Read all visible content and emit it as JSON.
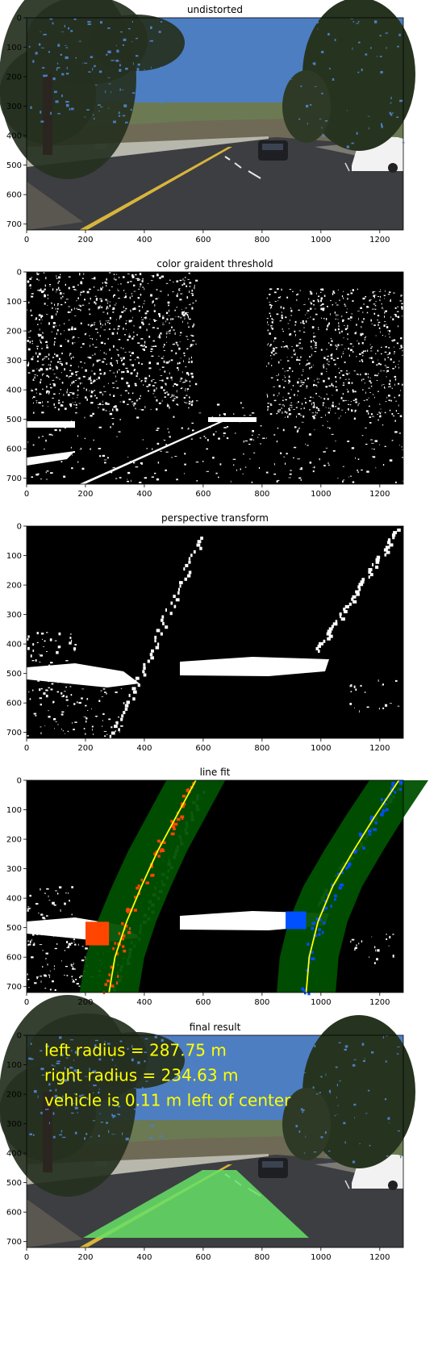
{
  "figure": {
    "panels": [
      {
        "id": "undistorted",
        "title": "undistorted",
        "kind": "photo"
      },
      {
        "id": "threshold",
        "title": "color graident threshold",
        "kind": "binary"
      },
      {
        "id": "warped",
        "title": "perspective transform",
        "kind": "binary"
      },
      {
        "id": "linefit",
        "title": "line fit",
        "kind": "fit"
      },
      {
        "id": "final",
        "title": "final result",
        "kind": "result"
      }
    ]
  },
  "chart_data": [
    {
      "type": "image",
      "title": "undistorted",
      "xlim": [
        0,
        1280
      ],
      "ylim": [
        720,
        0
      ],
      "xticks": [
        0,
        200,
        400,
        600,
        800,
        1000,
        1200
      ],
      "yticks": [
        0,
        100,
        200,
        300,
        400,
        500,
        600,
        700
      ]
    },
    {
      "type": "image",
      "title": "color graident threshold",
      "xlim": [
        0,
        1280
      ],
      "ylim": [
        720,
        0
      ],
      "xticks": [
        0,
        200,
        400,
        600,
        800,
        1000,
        1200
      ],
      "yticks": [
        0,
        100,
        200,
        300,
        400,
        500,
        600,
        700
      ]
    },
    {
      "type": "image",
      "title": "perspective transform",
      "xlim": [
        0,
        1280
      ],
      "ylim": [
        720,
        0
      ],
      "xticks": [
        0,
        200,
        400,
        600,
        800,
        1000,
        1200
      ],
      "yticks": [
        0,
        100,
        200,
        300,
        400,
        500,
        600,
        700
      ]
    },
    {
      "type": "image",
      "title": "line fit",
      "xlim": [
        0,
        1280
      ],
      "ylim": [
        720,
        0
      ],
      "xticks": [
        0,
        200,
        400,
        600,
        800,
        1000,
        1200
      ],
      "yticks": [
        0,
        100,
        200,
        300,
        400,
        500,
        600,
        700
      ],
      "series": [
        {
          "color": "#ffff00",
          "x": [
            280,
            300,
            340,
            390,
            445,
            510,
            575
          ],
          "y": [
            720,
            600,
            480,
            360,
            240,
            120,
            0
          ]
        },
        {
          "color": "#ffff00",
          "x": [
            950,
            960,
            990,
            1040,
            1110,
            1185,
            1265
          ],
          "y": [
            720,
            600,
            480,
            360,
            240,
            120,
            0
          ]
        }
      ],
      "colors": {
        "window": "#005000",
        "left_pixels": "#ff4500",
        "right_pixels": "#0050ff",
        "fit_line": "#ffff00"
      }
    },
    {
      "type": "image",
      "title": "final result",
      "xlim": [
        0,
        1280
      ],
      "ylim": [
        720,
        0
      ],
      "xticks": [
        0,
        200,
        400,
        600,
        800,
        1000,
        1200
      ],
      "yticks": [
        0,
        100,
        200,
        300,
        400,
        500,
        600,
        700
      ],
      "annotations": [
        "left radius = 287.75 m",
        "right radius = 234.63 m",
        "vehicle is 0.11 m left of center"
      ],
      "colors": {
        "annotation_text": "#ffff00",
        "lane_fill": "#66e066"
      }
    }
  ]
}
